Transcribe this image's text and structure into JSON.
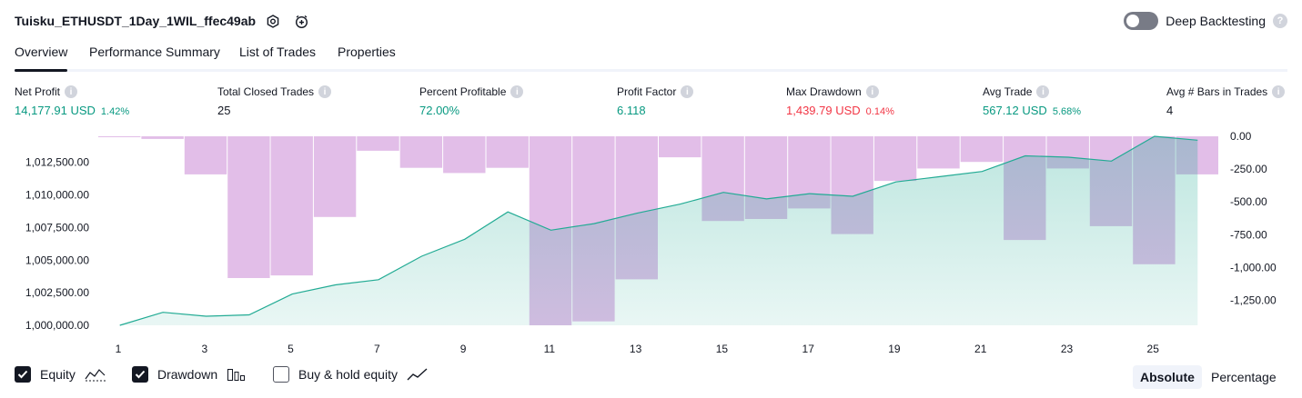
{
  "header": {
    "strategy_name": "Tuisku_ETHUSDT_1Day_1WIL_ffec49ab",
    "deep_backtesting_label": "Deep Backtesting",
    "deep_backtesting_on": false,
    "help_glyph": "?"
  },
  "tabs": [
    {
      "label": "Overview",
      "active": true
    },
    {
      "label": "Performance Summary",
      "active": false
    },
    {
      "label": "List of Trades",
      "active": false
    },
    {
      "label": "Properties",
      "active": false
    }
  ],
  "metrics": [
    {
      "label": "Net Profit",
      "value": "14,177.91 USD",
      "pct": "1.42%",
      "color": "#089981"
    },
    {
      "label": "Total Closed Trades",
      "value": "25",
      "pct": "",
      "color": "#131722"
    },
    {
      "label": "Percent Profitable",
      "value": "72.00%",
      "pct": "",
      "color": "#089981"
    },
    {
      "label": "Profit Factor",
      "value": "6.118",
      "pct": "",
      "color": "#089981"
    },
    {
      "label": "Max Drawdown",
      "value": "1,439.79 USD",
      "pct": "0.14%",
      "color": "#f23645"
    },
    {
      "label": "Avg Trade",
      "value": "567.12 USD",
      "pct": "5.68%",
      "color": "#089981"
    },
    {
      "label": "Avg # Bars in Trades",
      "value": "4",
      "pct": "",
      "color": "#131722"
    }
  ],
  "chart_data": {
    "type": "area",
    "x_ticks": [
      "1",
      "3",
      "5",
      "7",
      "9",
      "11",
      "13",
      "15",
      "17",
      "19",
      "21",
      "23",
      "25"
    ],
    "left_axis": {
      "ticks": [
        "1,012,500.00",
        "1,010,000.00",
        "1,007,500.00",
        "1,005,000.00",
        "1,002,500.00",
        "1,000,000.00"
      ],
      "ylim": [
        1000000,
        1014500
      ]
    },
    "right_axis": {
      "ticks": [
        "0.00",
        "-250.00",
        "-500.00",
        "-750.00",
        "-1,000.00",
        "-1,250.00"
      ],
      "ylim": [
        -1440,
        0
      ]
    },
    "series": [
      {
        "name": "Equity",
        "color": "#22ab94",
        "x": [
          1,
          2,
          3,
          4,
          5,
          6,
          7,
          8,
          9,
          10,
          11,
          12,
          13,
          14,
          15,
          16,
          17,
          18,
          19,
          20,
          21,
          22,
          23,
          24,
          25,
          26
        ],
        "values": [
          1000000,
          1001000,
          1000700,
          1000800,
          1002400,
          1003100,
          1003500,
          1005300,
          1006600,
          1008700,
          1007300,
          1007800,
          1008600,
          1009300,
          1010200,
          1009700,
          1010100,
          1009900,
          1011000,
          1011400,
          1011800,
          1013000,
          1012900,
          1012600,
          1014500,
          1014200
        ]
      },
      {
        "name": "Drawdown",
        "color": "#ce93d8",
        "x": [
          1,
          2,
          3,
          4,
          5,
          6,
          7,
          8,
          9,
          10,
          11,
          12,
          13,
          14,
          15,
          16,
          17,
          18,
          19,
          20,
          21,
          22,
          23,
          24,
          25,
          26
        ],
        "values": [
          -5,
          -20,
          -290,
          -1080,
          -1060,
          -615,
          -110,
          -240,
          -280,
          -240,
          -1440,
          -1410,
          -1090,
          -160,
          -645,
          -630,
          -550,
          -745,
          -340,
          -245,
          -195,
          -790,
          -245,
          -685,
          -975,
          -290
        ]
      }
    ]
  },
  "legend": [
    {
      "label": "Equity",
      "checked": true,
      "icon": "equity-icon"
    },
    {
      "label": "Drawdown",
      "checked": true,
      "icon": "drawdown-icon"
    },
    {
      "label": "Buy & hold equity",
      "checked": false,
      "icon": "buy-hold-icon"
    }
  ],
  "view_modes": [
    {
      "label": "Absolute",
      "active": true
    },
    {
      "label": "Percentage",
      "active": false
    }
  ]
}
